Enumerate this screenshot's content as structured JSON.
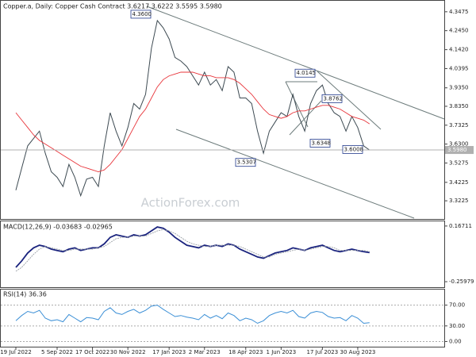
{
  "chart_data": [
    {
      "type": "line",
      "title": "Copper.a, Daily:  Copper Cash Contract  3.6217 3.6222 3.5595 3.5980",
      "watermark": "ActionForex.com",
      "categories": [
        "19 Jul 2022",
        null,
        null,
        null,
        null,
        null,
        null,
        "5 Sep 2022",
        null,
        null,
        null,
        null,
        null,
        "17 Oct 2022",
        null,
        null,
        null,
        null,
        null,
        "30 Nov 2022",
        null,
        null,
        null,
        null,
        null,
        null,
        "17 Jan 2023",
        null,
        null,
        null,
        null,
        null,
        "2 Mar 2023",
        null,
        null,
        null,
        null,
        null,
        null,
        "18 Apr 2023",
        null,
        null,
        null,
        null,
        null,
        "1 Jun 2023",
        null,
        null,
        null,
        null,
        null,
        null,
        "17 Jul 2023",
        null,
        null,
        null,
        null,
        null,
        "30 Aug 2023",
        null,
        null
      ],
      "series": [
        {
          "name": "Close",
          "color": "#3d4a52",
          "values": [
            3.38,
            3.5,
            3.62,
            3.66,
            3.7,
            3.58,
            3.48,
            3.45,
            3.4,
            3.52,
            3.45,
            3.35,
            3.44,
            3.45,
            3.4,
            3.62,
            3.8,
            3.7,
            3.62,
            3.72,
            3.85,
            3.82,
            3.9,
            4.15,
            4.3,
            4.26,
            4.2,
            4.1,
            4.08,
            4.05,
            4.0,
            3.95,
            4.02,
            3.95,
            3.98,
            3.92,
            4.05,
            4.02,
            3.88,
            3.88,
            3.85,
            3.7,
            3.58,
            3.7,
            3.75,
            3.8,
            3.78,
            3.9,
            3.78,
            3.7,
            3.85,
            3.92,
            3.95,
            3.85,
            3.8,
            3.78,
            3.7,
            3.78,
            3.72,
            3.62,
            3.598
          ]
        },
        {
          "name": "MA",
          "color": "#e8343a",
          "values": [
            3.8,
            3.76,
            3.72,
            3.68,
            3.65,
            3.63,
            3.61,
            3.59,
            3.57,
            3.55,
            3.53,
            3.51,
            3.5,
            3.49,
            3.48,
            3.49,
            3.52,
            3.56,
            3.6,
            3.66,
            3.72,
            3.78,
            3.82,
            3.88,
            3.94,
            3.98,
            4.0,
            4.01,
            4.02,
            4.02,
            4.02,
            4.01,
            4.0,
            4.0,
            3.99,
            3.99,
            3.99,
            3.98,
            3.96,
            3.93,
            3.9,
            3.86,
            3.82,
            3.79,
            3.78,
            3.77,
            3.78,
            3.8,
            3.81,
            3.81,
            3.82,
            3.83,
            3.84,
            3.84,
            3.83,
            3.82,
            3.8,
            3.78,
            3.77,
            3.76,
            3.74
          ]
        }
      ],
      "ylim": [
        3.224,
        4.407
      ],
      "yticks": [
        {
          "value": 4.3475,
          "label": "4.3475"
        },
        {
          "value": 4.245,
          "label": "4.2450"
        },
        {
          "value": 4.142,
          "label": "4.1420"
        },
        {
          "value": 4.0395,
          "label": "4.0395"
        },
        {
          "value": 3.935,
          "label": "3.9350"
        },
        {
          "value": 3.835,
          "label": "3.8350"
        },
        {
          "value": 3.7325,
          "label": "3.7325"
        },
        {
          "value": 3.63,
          "label": "3.6300"
        },
        {
          "value": 3.5275,
          "label": "3.5275"
        },
        {
          "value": 3.4225,
          "label": "3.4225"
        },
        {
          "value": 3.3225,
          "label": "3.3225"
        }
      ],
      "annotations": [
        {
          "value": 4.36,
          "label": "4.3600"
        },
        {
          "value": 4.0145,
          "label": "4.0145"
        },
        {
          "value": 3.8762,
          "label": "3.8762"
        },
        {
          "value": 3.6348,
          "label": "3.6348"
        },
        {
          "value": 3.6008,
          "label": "3.6008"
        },
        {
          "value": 3.5307,
          "label": "3.5307"
        }
      ],
      "last_price": {
        "value": 3.598,
        "label": "3.5980"
      }
    },
    {
      "type": "line",
      "title": "MACD(12,26,9) -0.03683 -0.02965",
      "series": [
        {
          "name": "MACD",
          "color": "#1a237e",
          "values": [
            -0.15,
            -0.1,
            -0.04,
            0.0,
            0.02,
            0.01,
            -0.01,
            -0.02,
            -0.03,
            -0.01,
            0.0,
            -0.02,
            -0.01,
            0.0,
            0.0,
            0.03,
            0.08,
            0.1,
            0.09,
            0.08,
            0.1,
            0.09,
            0.1,
            0.13,
            0.16,
            0.15,
            0.12,
            0.08,
            0.05,
            0.02,
            0.01,
            0.0,
            0.02,
            0.01,
            0.02,
            0.01,
            0.03,
            0.02,
            -0.01,
            -0.03,
            -0.05,
            -0.07,
            -0.08,
            -0.06,
            -0.04,
            -0.03,
            -0.02,
            0.0,
            -0.01,
            -0.02,
            0.0,
            0.01,
            0.02,
            0.0,
            -0.02,
            -0.03,
            -0.02,
            -0.01,
            -0.02,
            -0.03,
            -0.03683
          ]
        },
        {
          "name": "Signal",
          "color": "#9aa0a6",
          "values": [
            -0.18,
            -0.15,
            -0.1,
            -0.05,
            -0.01,
            0.01,
            0.0,
            -0.01,
            -0.02,
            -0.02,
            -0.01,
            -0.01,
            -0.01,
            -0.01,
            0.0,
            0.01,
            0.04,
            0.07,
            0.08,
            0.08,
            0.09,
            0.09,
            0.09,
            0.11,
            0.13,
            0.14,
            0.13,
            0.11,
            0.08,
            0.05,
            0.03,
            0.02,
            0.01,
            0.01,
            0.02,
            0.02,
            0.02,
            0.02,
            0.01,
            -0.01,
            -0.03,
            -0.05,
            -0.07,
            -0.07,
            -0.05,
            -0.04,
            -0.03,
            -0.02,
            -0.01,
            -0.02,
            -0.01,
            0.0,
            0.01,
            0.01,
            0.0,
            -0.02,
            -0.02,
            -0.02,
            -0.02,
            -0.02,
            -0.02965
          ]
        }
      ],
      "ylim": [
        -0.302,
        0.203
      ],
      "yticks": [
        0.16711,
        -0.25979
      ]
    },
    {
      "type": "line",
      "title": "RSI(14) 36.36",
      "series": [
        {
          "name": "RSI",
          "color": "#3b8fd6",
          "values": [
            40,
            50,
            58,
            55,
            60,
            45,
            40,
            42,
            38,
            52,
            45,
            38,
            46,
            45,
            42,
            58,
            65,
            55,
            52,
            58,
            62,
            55,
            60,
            68,
            70,
            62,
            55,
            48,
            50,
            47,
            45,
            42,
            52,
            45,
            50,
            44,
            55,
            50,
            40,
            45,
            42,
            35,
            40,
            50,
            55,
            58,
            55,
            60,
            48,
            45,
            55,
            58,
            56,
            48,
            45,
            46,
            40,
            50,
            45,
            35,
            36.36
          ]
        }
      ],
      "ylim": [
        -10,
        100
      ],
      "yticks": [
        {
          "value": 70,
          "label": "70.00"
        },
        {
          "value": 30,
          "label": "30.00"
        },
        {
          "value": 0,
          "label": "0.00"
        }
      ],
      "grid": true
    }
  ]
}
